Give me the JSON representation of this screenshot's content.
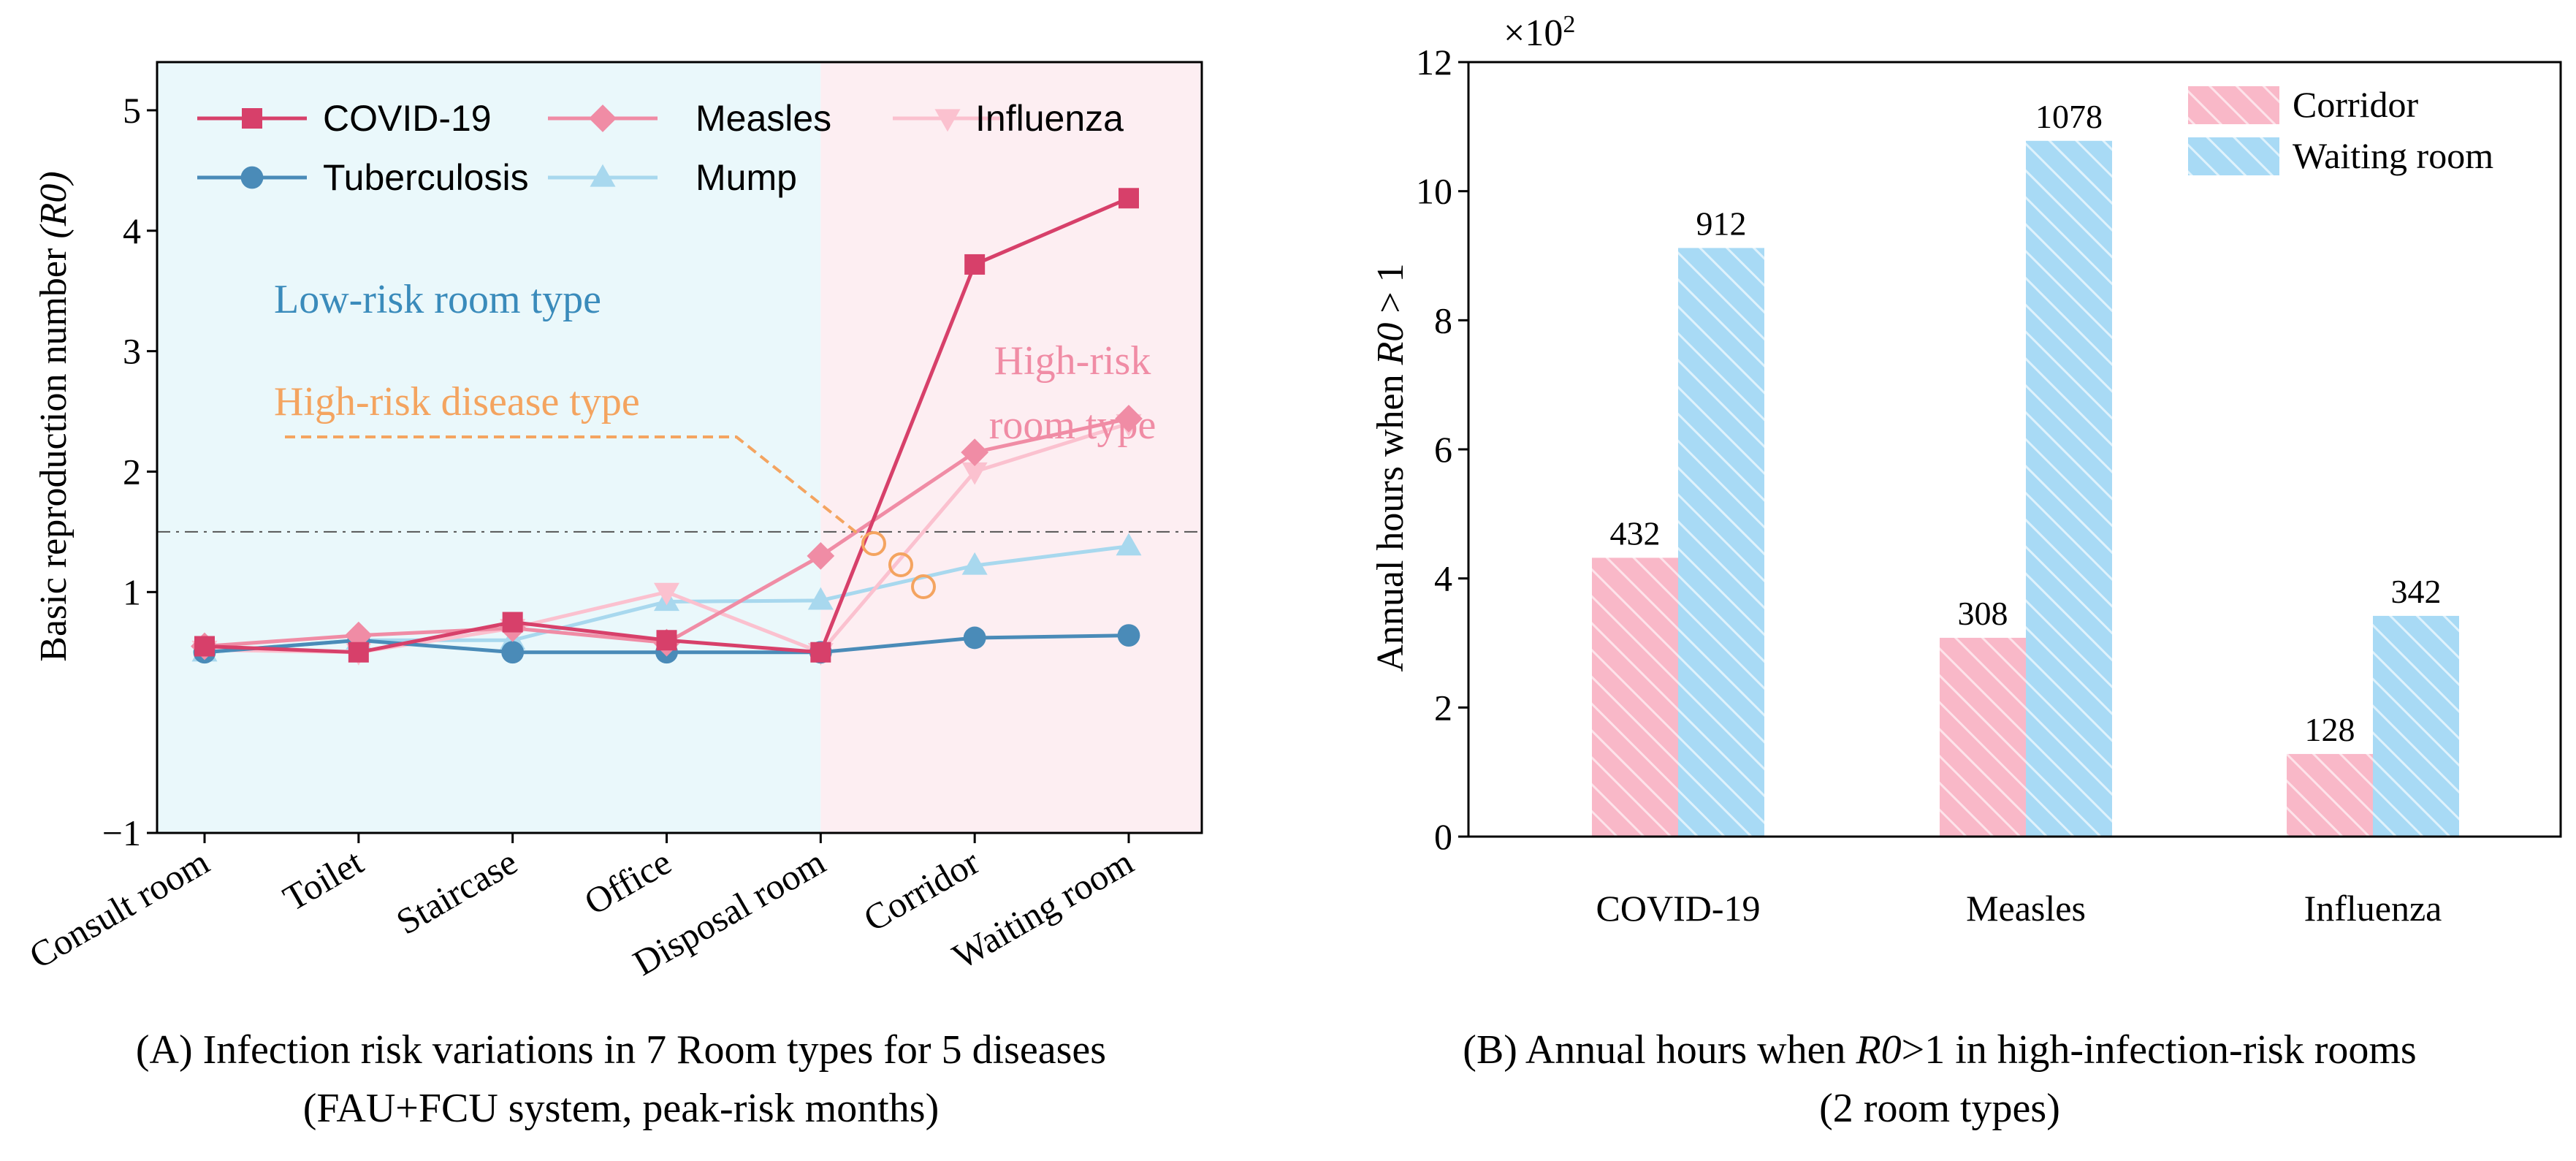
{
  "chart_data": [
    {
      "type": "line",
      "panel_caption_line1": "(A) Infection risk variations in 7 Room types for 5 diseases",
      "panel_caption_line2": "(FAU+FCU system, peak-risk months)",
      "ylabel": "Basic reproduction number",
      "ylabel_symbol": "(R0)",
      "ylim": [
        -1,
        5.4
      ],
      "yticks": [
        -1,
        1,
        2,
        3,
        4,
        5
      ],
      "ytick_labels": [
        "−1",
        "1",
        "2",
        "3",
        "4",
        "5"
      ],
      "categories": [
        "Consult room",
        "Toilet",
        "Staircase",
        "Office",
        "Disposal room",
        "Corridor",
        "Waiting room"
      ],
      "threshold_line": 1.5,
      "series": [
        {
          "name": "COVID-19",
          "color": "#d7406a",
          "marker": "square",
          "values": [
            0.55,
            0.5,
            0.75,
            0.6,
            0.5,
            3.72,
            4.27
          ]
        },
        {
          "name": "Measles",
          "color": "#f08ca5",
          "marker": "diamond",
          "values": [
            0.55,
            0.64,
            0.7,
            0.58,
            1.3,
            2.16,
            2.44
          ]
        },
        {
          "name": "Influenza",
          "color": "#fbc1cf",
          "marker": "triangle-down",
          "values": [
            0.52,
            0.5,
            0.7,
            1.0,
            0.5,
            2.0,
            2.4
          ]
        },
        {
          "name": "Tuberculosis",
          "color": "#4a8bb8",
          "marker": "circle",
          "values": [
            0.5,
            0.6,
            0.5,
            0.5,
            0.5,
            0.62,
            0.64
          ]
        },
        {
          "name": "Mump",
          "color": "#a8d8ee",
          "marker": "triangle-up",
          "values": [
            0.5,
            0.6,
            0.6,
            0.92,
            0.93,
            1.22,
            1.38
          ]
        }
      ],
      "annotations": {
        "low_risk": "Low-risk room type",
        "high_risk_disease": "High-risk disease type",
        "high_risk_room_line1": "High-risk",
        "high_risk_room_line2": "room type"
      },
      "colors": {
        "low_risk_bg": "#eaf8fb",
        "high_risk_bg": "#fdeef2",
        "low_risk_text": "#3a8bbb",
        "disease_text": "#f4a460",
        "room_text": "#f08ca5"
      }
    },
    {
      "type": "bar",
      "panel_caption_line1_prefix": "(B) Annual hours when ",
      "panel_caption_symbol": "R0",
      "panel_caption_line1_suffix": ">1 in high-infection-risk rooms",
      "panel_caption_line2": "(2 room types)",
      "ylabel_prefix": "Annual hours when ",
      "ylabel_symbol": "R0",
      "ylabel_suffix": " > 1",
      "y_multiplier": "×10",
      "y_multiplier_exp": "2",
      "ylim": [
        0,
        12
      ],
      "yticks": [
        0,
        2,
        4,
        6,
        8,
        10,
        12
      ],
      "categories": [
        "COVID-19",
        "Measles",
        "Influenza"
      ],
      "series": [
        {
          "name": "Corridor",
          "color": "#f9b8c8",
          "values": [
            432,
            308,
            128
          ]
        },
        {
          "name": "Waiting room",
          "color": "#a8daf5",
          "values": [
            912,
            1078,
            342
          ]
        }
      ]
    }
  ]
}
